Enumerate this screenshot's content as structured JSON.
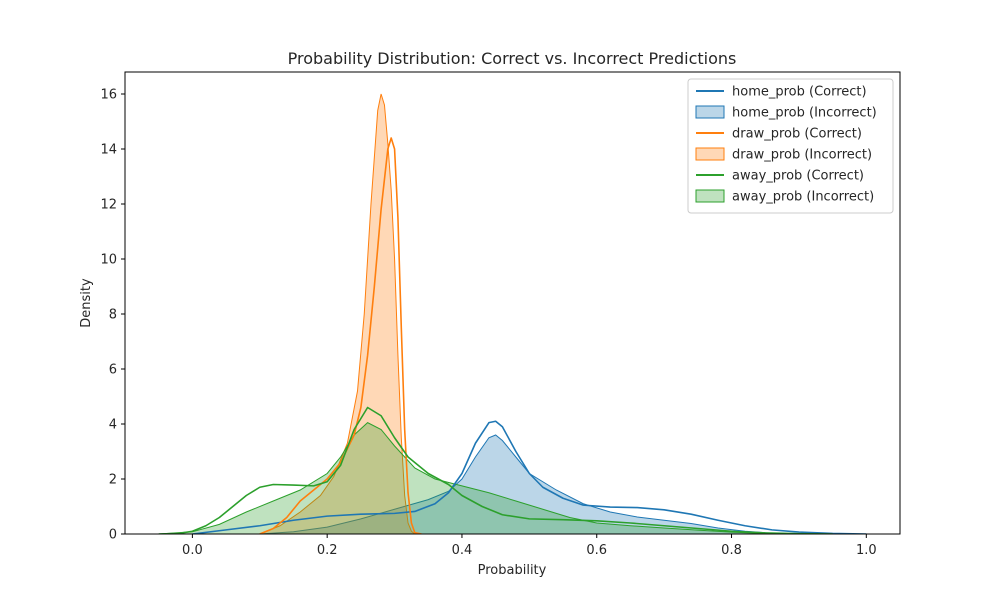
{
  "chart_data": {
    "type": "area",
    "title": "Probability Distribution: Correct vs. Incorrect Predictions",
    "xlabel": "Probability",
    "ylabel": "Density",
    "xlim": [
      -0.1,
      1.05
    ],
    "ylim": [
      0,
      16.8
    ],
    "xticks": [
      0.0,
      0.2,
      0.4,
      0.6,
      0.8,
      1.0
    ],
    "xtick_labels": [
      "0.0",
      "0.2",
      "0.4",
      "0.6",
      "0.8",
      "1.0"
    ],
    "yticks": [
      0,
      2,
      4,
      6,
      8,
      10,
      12,
      14,
      16
    ],
    "ytick_labels": [
      "0",
      "2",
      "4",
      "6",
      "8",
      "10",
      "12",
      "14",
      "16"
    ],
    "grid": false,
    "legend_position": "top-right",
    "series": [
      {
        "name": "home_prob (Correct)",
        "style": "line",
        "color": "#1f77b4",
        "points": [
          [
            0.0,
            0.0
          ],
          [
            0.05,
            0.15
          ],
          [
            0.1,
            0.3
          ],
          [
            0.15,
            0.5
          ],
          [
            0.2,
            0.65
          ],
          [
            0.25,
            0.72
          ],
          [
            0.3,
            0.75
          ],
          [
            0.33,
            0.82
          ],
          [
            0.36,
            1.1
          ],
          [
            0.38,
            1.5
          ],
          [
            0.4,
            2.2
          ],
          [
            0.42,
            3.3
          ],
          [
            0.44,
            4.05
          ],
          [
            0.45,
            4.1
          ],
          [
            0.46,
            3.9
          ],
          [
            0.48,
            3.0
          ],
          [
            0.5,
            2.2
          ],
          [
            0.52,
            1.7
          ],
          [
            0.55,
            1.3
          ],
          [
            0.58,
            1.05
          ],
          [
            0.62,
            0.98
          ],
          [
            0.66,
            0.96
          ],
          [
            0.7,
            0.88
          ],
          [
            0.74,
            0.72
          ],
          [
            0.78,
            0.5
          ],
          [
            0.82,
            0.3
          ],
          [
            0.86,
            0.15
          ],
          [
            0.9,
            0.07
          ],
          [
            0.95,
            0.02
          ],
          [
            1.0,
            0.0
          ]
        ]
      },
      {
        "name": "home_prob (Incorrect)",
        "style": "fill",
        "color": "#1f77b4",
        "points": [
          [
            0.1,
            0.0
          ],
          [
            0.15,
            0.08
          ],
          [
            0.2,
            0.25
          ],
          [
            0.25,
            0.55
          ],
          [
            0.3,
            0.9
          ],
          [
            0.35,
            1.25
          ],
          [
            0.38,
            1.55
          ],
          [
            0.4,
            2.0
          ],
          [
            0.42,
            2.8
          ],
          [
            0.44,
            3.5
          ],
          [
            0.45,
            3.6
          ],
          [
            0.46,
            3.4
          ],
          [
            0.48,
            2.8
          ],
          [
            0.5,
            2.2
          ],
          [
            0.54,
            1.6
          ],
          [
            0.58,
            1.1
          ],
          [
            0.62,
            0.8
          ],
          [
            0.66,
            0.62
          ],
          [
            0.7,
            0.5
          ],
          [
            0.74,
            0.38
          ],
          [
            0.78,
            0.22
          ],
          [
            0.82,
            0.1
          ],
          [
            0.86,
            0.03
          ],
          [
            0.9,
            0.0
          ]
        ]
      },
      {
        "name": "draw_prob (Correct)",
        "style": "line",
        "color": "#ff7f0e",
        "points": [
          [
            0.1,
            0.0
          ],
          [
            0.12,
            0.2
          ],
          [
            0.14,
            0.6
          ],
          [
            0.16,
            1.2
          ],
          [
            0.18,
            1.6
          ],
          [
            0.2,
            2.0
          ],
          [
            0.22,
            2.6
          ],
          [
            0.24,
            3.6
          ],
          [
            0.25,
            4.6
          ],
          [
            0.26,
            6.5
          ],
          [
            0.27,
            9.0
          ],
          [
            0.28,
            11.8
          ],
          [
            0.29,
            14.0
          ],
          [
            0.295,
            14.4
          ],
          [
            0.3,
            14.0
          ],
          [
            0.305,
            11.5
          ],
          [
            0.31,
            7.5
          ],
          [
            0.315,
            3.8
          ],
          [
            0.32,
            1.5
          ],
          [
            0.325,
            0.4
          ],
          [
            0.33,
            0.05
          ],
          [
            0.34,
            0.0
          ]
        ]
      },
      {
        "name": "draw_prob (Incorrect)",
        "style": "fill",
        "color": "#ff7f0e",
        "points": [
          [
            0.1,
            0.0
          ],
          [
            0.13,
            0.3
          ],
          [
            0.16,
            0.8
          ],
          [
            0.19,
            1.4
          ],
          [
            0.21,
            2.1
          ],
          [
            0.23,
            3.3
          ],
          [
            0.245,
            5.2
          ],
          [
            0.255,
            8.0
          ],
          [
            0.265,
            12.0
          ],
          [
            0.275,
            15.4
          ],
          [
            0.28,
            16.0
          ],
          [
            0.285,
            15.6
          ],
          [
            0.29,
            14.2
          ],
          [
            0.295,
            12.5
          ],
          [
            0.3,
            10.0
          ],
          [
            0.305,
            6.5
          ],
          [
            0.31,
            3.5
          ],
          [
            0.315,
            1.4
          ],
          [
            0.32,
            0.4
          ],
          [
            0.325,
            0.1
          ],
          [
            0.33,
            0.0
          ]
        ]
      },
      {
        "name": "away_prob (Correct)",
        "style": "line",
        "color": "#2ca02c",
        "points": [
          [
            -0.05,
            0.0
          ],
          [
            -0.02,
            0.02
          ],
          [
            0.0,
            0.1
          ],
          [
            0.02,
            0.3
          ],
          [
            0.04,
            0.6
          ],
          [
            0.06,
            1.0
          ],
          [
            0.08,
            1.4
          ],
          [
            0.1,
            1.7
          ],
          [
            0.12,
            1.8
          ],
          [
            0.15,
            1.78
          ],
          [
            0.18,
            1.75
          ],
          [
            0.2,
            1.9
          ],
          [
            0.22,
            2.5
          ],
          [
            0.24,
            3.8
          ],
          [
            0.26,
            4.6
          ],
          [
            0.28,
            4.3
          ],
          [
            0.3,
            3.5
          ],
          [
            0.32,
            2.8
          ],
          [
            0.35,
            2.2
          ],
          [
            0.38,
            1.8
          ],
          [
            0.4,
            1.4
          ],
          [
            0.43,
            1.0
          ],
          [
            0.46,
            0.7
          ],
          [
            0.5,
            0.55
          ],
          [
            0.55,
            0.52
          ],
          [
            0.6,
            0.48
          ],
          [
            0.65,
            0.4
          ],
          [
            0.7,
            0.3
          ],
          [
            0.75,
            0.2
          ],
          [
            0.8,
            0.1
          ],
          [
            0.85,
            0.04
          ],
          [
            0.9,
            0.01
          ],
          [
            0.95,
            0.0
          ]
        ]
      },
      {
        "name": "away_prob (Incorrect)",
        "style": "fill",
        "color": "#2ca02c",
        "points": [
          [
            -0.05,
            0.0
          ],
          [
            0.0,
            0.08
          ],
          [
            0.04,
            0.35
          ],
          [
            0.08,
            0.8
          ],
          [
            0.12,
            1.2
          ],
          [
            0.16,
            1.6
          ],
          [
            0.2,
            2.2
          ],
          [
            0.22,
            2.8
          ],
          [
            0.24,
            3.6
          ],
          [
            0.26,
            4.05
          ],
          [
            0.28,
            3.8
          ],
          [
            0.3,
            3.2
          ],
          [
            0.33,
            2.4
          ],
          [
            0.36,
            2.0
          ],
          [
            0.4,
            1.75
          ],
          [
            0.44,
            1.5
          ],
          [
            0.48,
            1.2
          ],
          [
            0.52,
            0.9
          ],
          [
            0.56,
            0.6
          ],
          [
            0.6,
            0.4
          ],
          [
            0.65,
            0.3
          ],
          [
            0.7,
            0.22
          ],
          [
            0.75,
            0.14
          ],
          [
            0.8,
            0.07
          ],
          [
            0.85,
            0.02
          ],
          [
            0.9,
            0.0
          ]
        ]
      }
    ]
  }
}
